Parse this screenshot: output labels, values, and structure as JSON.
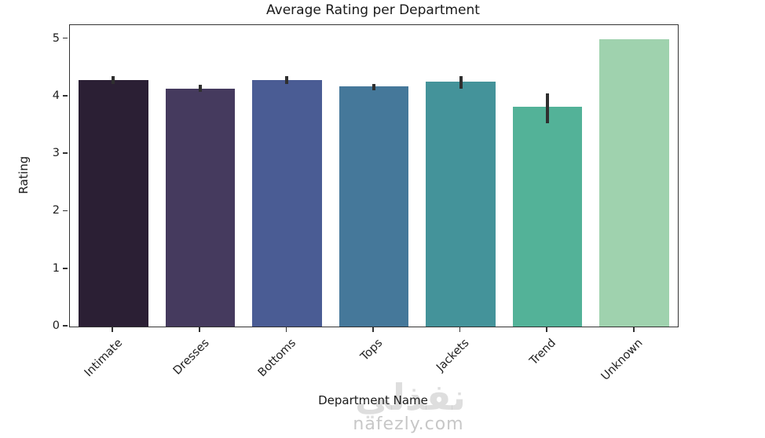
{
  "chart_data": {
    "type": "bar",
    "title": "Average Rating per Department",
    "xlabel": "Department Name",
    "ylabel": "Rating",
    "categories": [
      "Intimate",
      "Dresses",
      "Bottoms",
      "Tops",
      "Jackets",
      "Trend",
      "Unknown"
    ],
    "values": [
      4.28,
      4.14,
      4.29,
      4.17,
      4.26,
      3.82,
      5.0
    ],
    "error_low": [
      4.21,
      4.08,
      4.21,
      4.11,
      4.14,
      3.53,
      5.0
    ],
    "error_high": [
      4.35,
      4.2,
      4.36,
      4.22,
      4.35,
      4.06,
      5.0
    ],
    "bar_colors": [
      "#2b1f34",
      "#453a5e",
      "#4a5c94",
      "#45789a",
      "#44939a",
      "#53b298",
      "#9fd2ae"
    ],
    "yticks": [
      0,
      1,
      2,
      3,
      4,
      5
    ],
    "ylim": [
      0,
      5.24
    ],
    "xtick_rotation": 45,
    "grid": false,
    "legend": "none",
    "error_bar_color": "#2f2f2f"
  },
  "watermark": {
    "arabic_text": "نفذلي",
    "domain_text": "nafezly.com"
  }
}
